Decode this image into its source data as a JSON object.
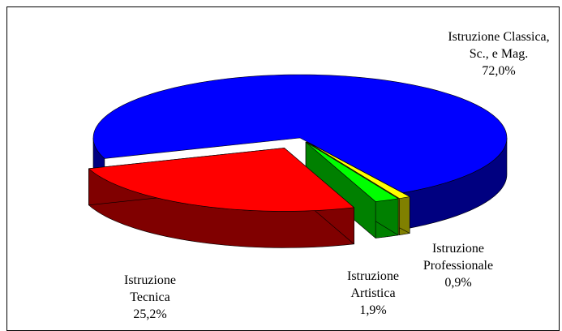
{
  "chart_data": {
    "type": "pie",
    "categories": [
      "Istruzione Classica, Sc., e Mag.",
      "Istruzione Professionale",
      "Istruzione Artistica",
      "Istruzione Tecnica"
    ],
    "values": [
      72.0,
      0.9,
      1.9,
      25.2
    ],
    "value_labels": [
      "72,0%",
      "0,9%",
      "1,9%",
      "25,2%"
    ],
    "colors": [
      "#0000ff",
      "#ffff00",
      "#00ff00",
      "#ff0000"
    ]
  }
}
